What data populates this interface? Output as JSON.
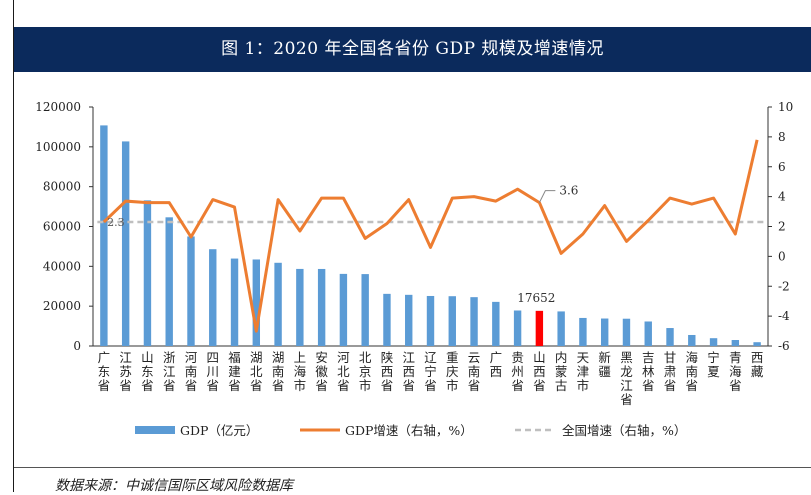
{
  "title": "图 1：2020 年全国各省份 GDP 规模及增速情况",
  "source": "数据来源：中诚信国际区域风险数据库",
  "colors": {
    "bar": "#5b9bd5",
    "highlight_bar": "#ff0000",
    "line": "#ed7d31",
    "national": "#bfbfbf",
    "title_bg": "#0b2a5c"
  },
  "chart_data": {
    "type": "bar",
    "categories": [
      "广东省",
      "江苏省",
      "山东省",
      "浙江省",
      "河南省",
      "四川省",
      "福建省",
      "湖北省",
      "湖南省",
      "上海市",
      "安徽省",
      "河北省",
      "北京市",
      "陕西省",
      "江西省",
      "辽宁省",
      "重庆市",
      "云南省",
      "广西",
      "贵州省",
      "山西省",
      "内蒙古",
      "天津市",
      "新疆",
      "黑龙江省",
      "吉林省",
      "甘肃省",
      "海南省",
      "宁夏",
      "青海省",
      "西藏"
    ],
    "series": [
      {
        "name": "GDP（亿元）",
        "type": "bar",
        "axis": "left",
        "values": [
          110761,
          102719,
          73129,
          64613,
          54997,
          48599,
          43904,
          43443,
          41782,
          38701,
          38681,
          36207,
          36103,
          26182,
          25692,
          25115,
          25003,
          24522,
          22157,
          17827,
          17652,
          17360,
          14084,
          13798,
          13699,
          12311,
          9017,
          5532,
          3921,
          3006,
          1903
        ]
      },
      {
        "name": "GDP增速（右轴，%）",
        "type": "line",
        "axis": "right",
        "values": [
          2.3,
          3.7,
          3.6,
          3.6,
          1.3,
          3.8,
          3.3,
          -5.0,
          3.8,
          1.7,
          3.9,
          3.9,
          1.2,
          2.2,
          3.8,
          0.6,
          3.9,
          4.0,
          3.7,
          4.5,
          3.6,
          0.2,
          1.5,
          3.4,
          1.0,
          2.4,
          3.9,
          3.5,
          3.9,
          1.5,
          7.8
        ]
      },
      {
        "name": "全国增速（右轴，%）",
        "type": "line",
        "axis": "right",
        "style": "dashed",
        "values": [
          2.3,
          2.3,
          2.3,
          2.3,
          2.3,
          2.3,
          2.3,
          2.3,
          2.3,
          2.3,
          2.3,
          2.3,
          2.3,
          2.3,
          2.3,
          2.3,
          2.3,
          2.3,
          2.3,
          2.3,
          2.3,
          2.3,
          2.3,
          2.3,
          2.3,
          2.3,
          2.3,
          2.3,
          2.3,
          2.3,
          2.3
        ]
      }
    ],
    "highlight_category": "山西省",
    "annotations": [
      {
        "target": "山西省 GDP",
        "text": "17652"
      },
      {
        "target": "山西省 增速",
        "text": "3.6"
      },
      {
        "target": "全国增速",
        "text": "2.3"
      }
    ],
    "y_left": {
      "min": 0,
      "max": 120000,
      "ticks": [
        "0",
        "20000",
        "40000",
        "60000",
        "80000",
        "100000",
        "120000"
      ]
    },
    "y_right": {
      "min": -6,
      "max": 10,
      "ticks": [
        "-6",
        "-4",
        "-2",
        "0",
        "2",
        "4",
        "6",
        "8",
        "10"
      ]
    },
    "legend_position": "bottom",
    "grid": false
  }
}
